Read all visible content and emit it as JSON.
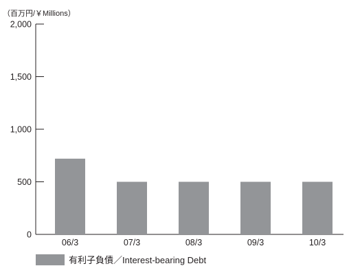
{
  "chart_data": {
    "type": "bar",
    "unit_label": "（百万円/￥Millions）",
    "categories": [
      "06/3",
      "07/3",
      "08/3",
      "09/3",
      "10/3"
    ],
    "series": [
      {
        "name": "有利子負債／Interest-bearing Debt",
        "values": [
          720,
          500,
          500,
          500,
          500
        ],
        "color": "#939598"
      }
    ],
    "ylim": [
      0,
      2000
    ],
    "yticks": [
      0,
      500,
      1000,
      1500,
      2000
    ],
    "ytick_labels": [
      "0",
      "500",
      "1,000",
      "1,500",
      "2,000"
    ],
    "grid": false,
    "legend_position": "bottom-left"
  }
}
